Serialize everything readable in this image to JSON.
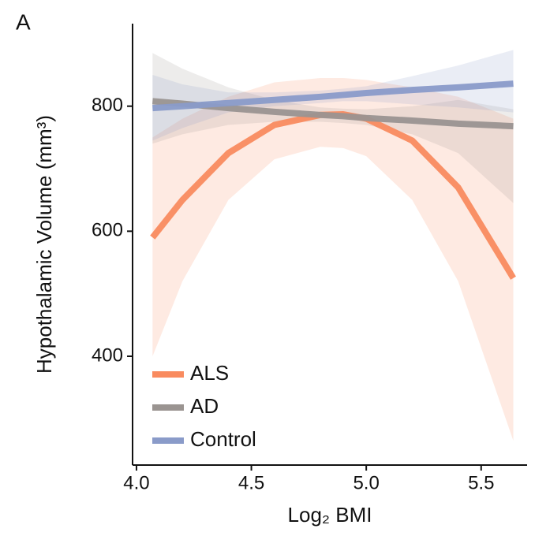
{
  "chart_data": {
    "type": "line",
    "panel_label": "A",
    "xlabel": "Log₂ BMI",
    "ylabel": "Hypothalamic Volume (mm³)",
    "xlim": [
      3.983,
      5.7
    ],
    "ylim": [
      226,
      932
    ],
    "xticks": [
      {
        "value": 4,
        "label": "4.0"
      },
      4.5,
      {
        "value": 5,
        "label": "5.0"
      },
      5.5
    ],
    "yticks": [
      400,
      600,
      800
    ],
    "legend": "lower left",
    "x": [
      4.07,
      4.2,
      4.4,
      4.6,
      4.8,
      4.9,
      5.0,
      5.2,
      5.4,
      5.64
    ],
    "series": [
      {
        "name": "ALS",
        "color": "#f98b5f",
        "values": [
          590,
          650,
          725,
          770,
          786,
          787,
          780,
          745,
          670,
          525
        ],
        "lower": [
          400,
          520,
          650,
          715,
          735,
          733,
          720,
          650,
          520,
          265
        ],
        "upper": [
          750,
          780,
          815,
          838,
          845,
          845,
          842,
          830,
          815,
          780
        ]
      },
      {
        "name": "AD",
        "color": "#9a9491",
        "values": [
          808,
          804,
          797,
          791,
          786,
          784,
          781,
          777,
          772,
          768
        ],
        "lower": [
          740,
          755,
          770,
          775,
          775,
          773,
          770,
          755,
          725,
          645
        ],
        "upper": [
          885,
          860,
          830,
          810,
          798,
          796,
          795,
          800,
          810,
          795
        ]
      },
      {
        "name": "Control",
        "color": "#8a9bc9",
        "values": [
          797,
          800,
          805,
          810,
          815,
          818,
          821,
          826,
          830,
          836
        ],
        "lower": [
          745,
          765,
          790,
          800,
          805,
          808,
          808,
          803,
          798,
          790
        ],
        "upper": [
          850,
          835,
          822,
          822,
          825,
          828,
          832,
          848,
          865,
          890
        ]
      }
    ]
  }
}
